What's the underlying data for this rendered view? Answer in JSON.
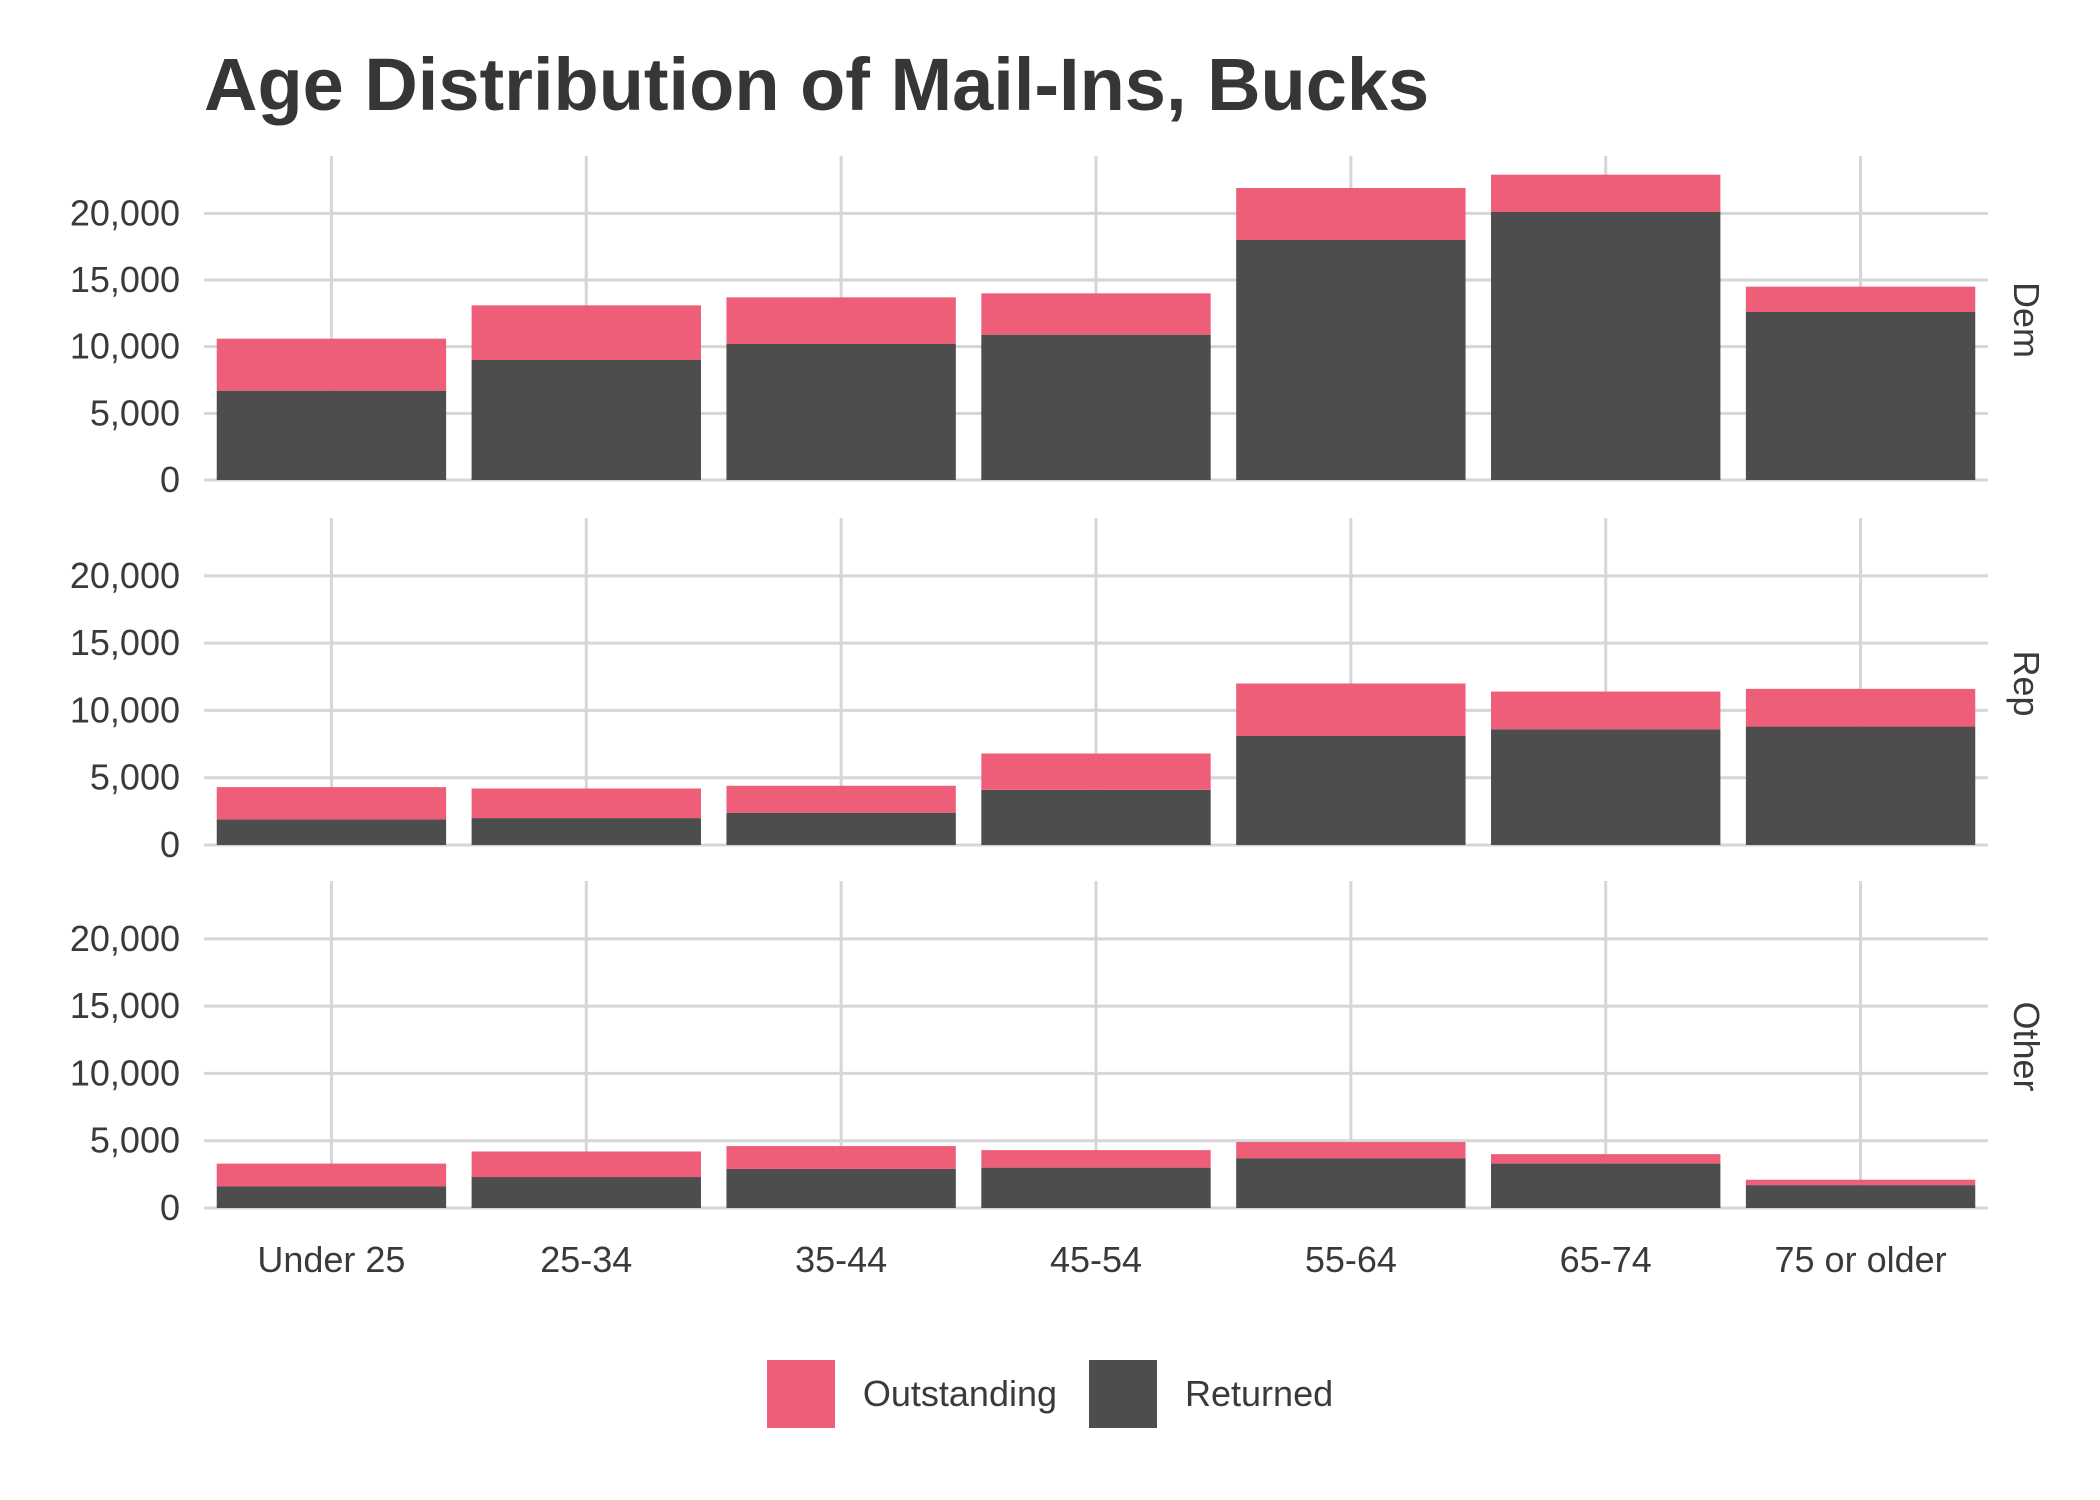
{
  "chart_data": {
    "type": "bar",
    "stacked": true,
    "title": "Age Distribution of Mail-Ins, Bucks",
    "xlabel": "",
    "ylabel": "",
    "categories": [
      "Under 25",
      "25-34",
      "35-44",
      "45-54",
      "55-64",
      "65-74",
      "75 or older"
    ],
    "ylim": [
      0,
      24000
    ],
    "yticks": [
      0,
      5000,
      10000,
      15000,
      20000
    ],
    "ytick_labels": [
      "0",
      "5,000",
      "10,000",
      "15,000",
      "20,000"
    ],
    "grid": true,
    "legend_position": "bottom",
    "legend": [
      {
        "label": "Outstanding",
        "color": "#EE5E78"
      },
      {
        "label": "Returned",
        "color": "#4D4D4D"
      }
    ],
    "panels": [
      {
        "label": "Dem",
        "series": [
          {
            "name": "Returned",
            "values": [
              6700,
              9000,
              10200,
              10900,
              18000,
              20100,
              12600
            ]
          },
          {
            "name": "Outstanding",
            "values": [
              3900,
              4100,
              3500,
              3100,
              3900,
              2800,
              1900
            ]
          }
        ]
      },
      {
        "label": "Rep",
        "series": [
          {
            "name": "Returned",
            "values": [
              1900,
              2000,
              2400,
              4100,
              8100,
              8600,
              8800
            ]
          },
          {
            "name": "Outstanding",
            "values": [
              2400,
              2200,
              2000,
              2700,
              3900,
              2800,
              2800
            ]
          }
        ]
      },
      {
        "label": "Other",
        "series": [
          {
            "name": "Returned",
            "values": [
              1600,
              2300,
              2900,
              3000,
              3700,
              3300,
              1700
            ]
          },
          {
            "name": "Outstanding",
            "values": [
              1700,
              1900,
              1700,
              1300,
              1200,
              700,
              400
            ]
          }
        ]
      }
    ]
  }
}
